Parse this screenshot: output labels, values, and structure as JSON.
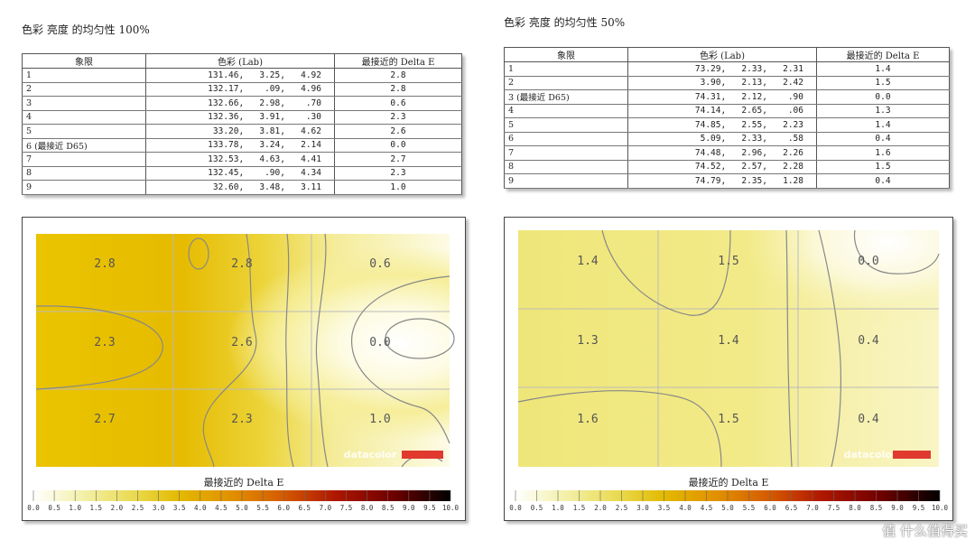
{
  "left": {
    "title": "色彩 亮度 的均匀性 100%",
    "table": {
      "headers": [
        "象限",
        "色彩 (Lab)",
        "最接近的 Delta E"
      ],
      "rows": [
        {
          "q": "1",
          "lab": "131.46,   3.25,   4.92",
          "de": "2.8"
        },
        {
          "q": "2",
          "lab": "132.17,    .09,   4.96",
          "de": "2.8"
        },
        {
          "q": "3",
          "lab": "132.66,   2.98,    .70",
          "de": "0.6"
        },
        {
          "q": "4",
          "lab": "132.36,   3.91,    .30",
          "de": "2.3"
        },
        {
          "q": "5",
          "lab": " 33.20,   3.81,   4.62",
          "de": "2.6"
        },
        {
          "q": "6 (最接近 D65)",
          "lab": "133.78,   3.24,   2.14",
          "de": "0.0"
        },
        {
          "q": "7",
          "lab": "132.53,   4.63,   4.41",
          "de": "2.7"
        },
        {
          "q": "8",
          "lab": "132.45,    .90,   4.34",
          "de": "2.3"
        },
        {
          "q": "9",
          "lab": " 32.60,   3.48,   3.11",
          "de": "1.0"
        }
      ]
    }
  },
  "right": {
    "title": "色彩 亮度 的均匀性 50%",
    "table": {
      "headers": [
        "象限",
        "色彩 (Lab)",
        "最接近的 Delta E"
      ],
      "rows": [
        {
          "q": "1",
          "lab": "73.29,   2.33,   2.31",
          "de": "1.4"
        },
        {
          "q": "2",
          "lab": " 3.90,   2.13,   2.42",
          "de": "1.5"
        },
        {
          "q": "3 (最接近 D65)",
          "lab": "74.31,   2.12,    .90",
          "de": "0.0"
        },
        {
          "q": "4",
          "lab": "74.14,   2.65,    .06",
          "de": "1.3"
        },
        {
          "q": "5",
          "lab": "74.85,   2.55,   2.23",
          "de": "1.4"
        },
        {
          "q": "6",
          "lab": " 5.09,   2.33,    .58",
          "de": "0.4"
        },
        {
          "q": "7",
          "lab": "74.48,   2.96,   2.26",
          "de": "1.6"
        },
        {
          "q": "8",
          "lab": "74.52,   2.57,   2.28",
          "de": "1.5"
        },
        {
          "q": "9",
          "lab": "74.79,   2.35,   1.28",
          "de": "0.4"
        }
      ]
    }
  },
  "chart_data": [
    {
      "type": "heatmap",
      "grid": [
        [
          "2.8",
          "2.8",
          "0.6"
        ],
        [
          "2.3",
          "2.6",
          "0.0"
        ],
        [
          "2.7",
          "2.3",
          "1.0"
        ]
      ],
      "values": [
        [
          2.8,
          2.8,
          0.6
        ],
        [
          2.3,
          2.6,
          0.0
        ],
        [
          2.7,
          2.3,
          1.0
        ]
      ],
      "legend_title": "最接近的 Delta E",
      "legend_ticks": [
        "0.0",
        "0.5",
        "1.0",
        "1.5",
        "2.0",
        "2.5",
        "3.0",
        "3.5",
        "4.0",
        "4.5",
        "5.0",
        "5.5",
        "6.0",
        "6.5",
        "7.0",
        "7.5",
        "8.0",
        "8.5",
        "9.0",
        "9.5",
        "10.0"
      ],
      "scale_range": [
        0,
        10
      ],
      "watermark": "datacolor",
      "watermark_color": "#e03a2f"
    },
    {
      "type": "heatmap",
      "grid": [
        [
          "1.4",
          "1.5",
          "0.0"
        ],
        [
          "1.3",
          "1.4",
          "0.4"
        ],
        [
          "1.6",
          "1.5",
          "0.4"
        ]
      ],
      "values": [
        [
          1.4,
          1.5,
          0.0
        ],
        [
          1.3,
          1.4,
          0.4
        ],
        [
          1.6,
          1.5,
          0.4
        ]
      ],
      "legend_title": "最接近的 Delta E",
      "legend_ticks": [
        "0.0",
        "0.5",
        "1.0",
        "1.5",
        "2.0",
        "2.5",
        "3.0",
        "3.5",
        "4.0",
        "4.5",
        "5.0",
        "5.5",
        "6.0",
        "6.5",
        "7.0",
        "7.5",
        "8.0",
        "8.5",
        "9.0",
        "9.5",
        "10.0"
      ],
      "scale_range": [
        0,
        10
      ],
      "watermark": "datacolor",
      "watermark_color": "#e03a2f"
    }
  ],
  "footer_watermark": "值 什么值得买",
  "colors": {
    "scale": [
      "#ffffff",
      "#f3f0a8",
      "#e9d84a",
      "#e3b900",
      "#e18e00",
      "#d45a00",
      "#b01800",
      "#700000",
      "#000000"
    ]
  }
}
